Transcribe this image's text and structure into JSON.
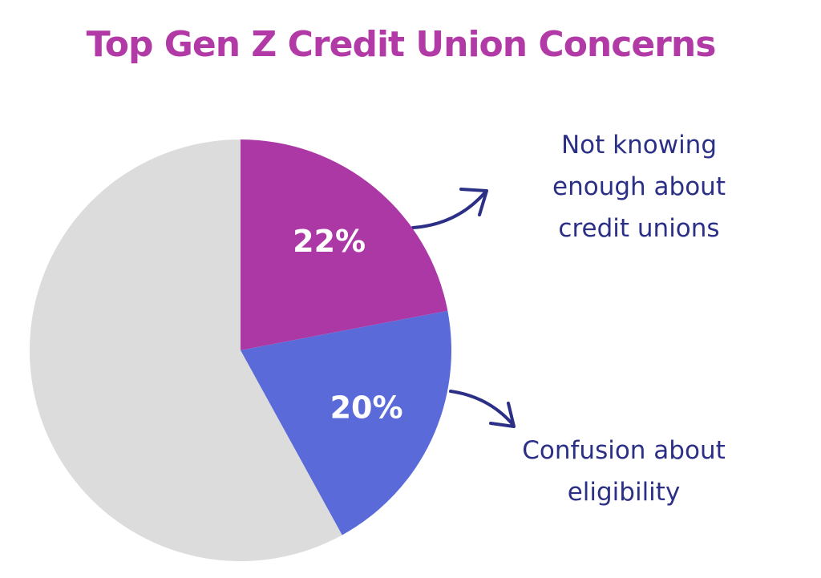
{
  "chart_data": {
    "type": "pie",
    "title": "Top Gen Z Credit Union Concerns",
    "categories": [
      "Not knowing enough about credit unions",
      "Confusion about eligibility",
      null
    ],
    "values": [
      22,
      20,
      58
    ],
    "value_labels": [
      "22%",
      "20%",
      null
    ],
    "colors": [
      "#ac38a6",
      "#5a6bd9",
      "#dcdcdc"
    ]
  }
}
